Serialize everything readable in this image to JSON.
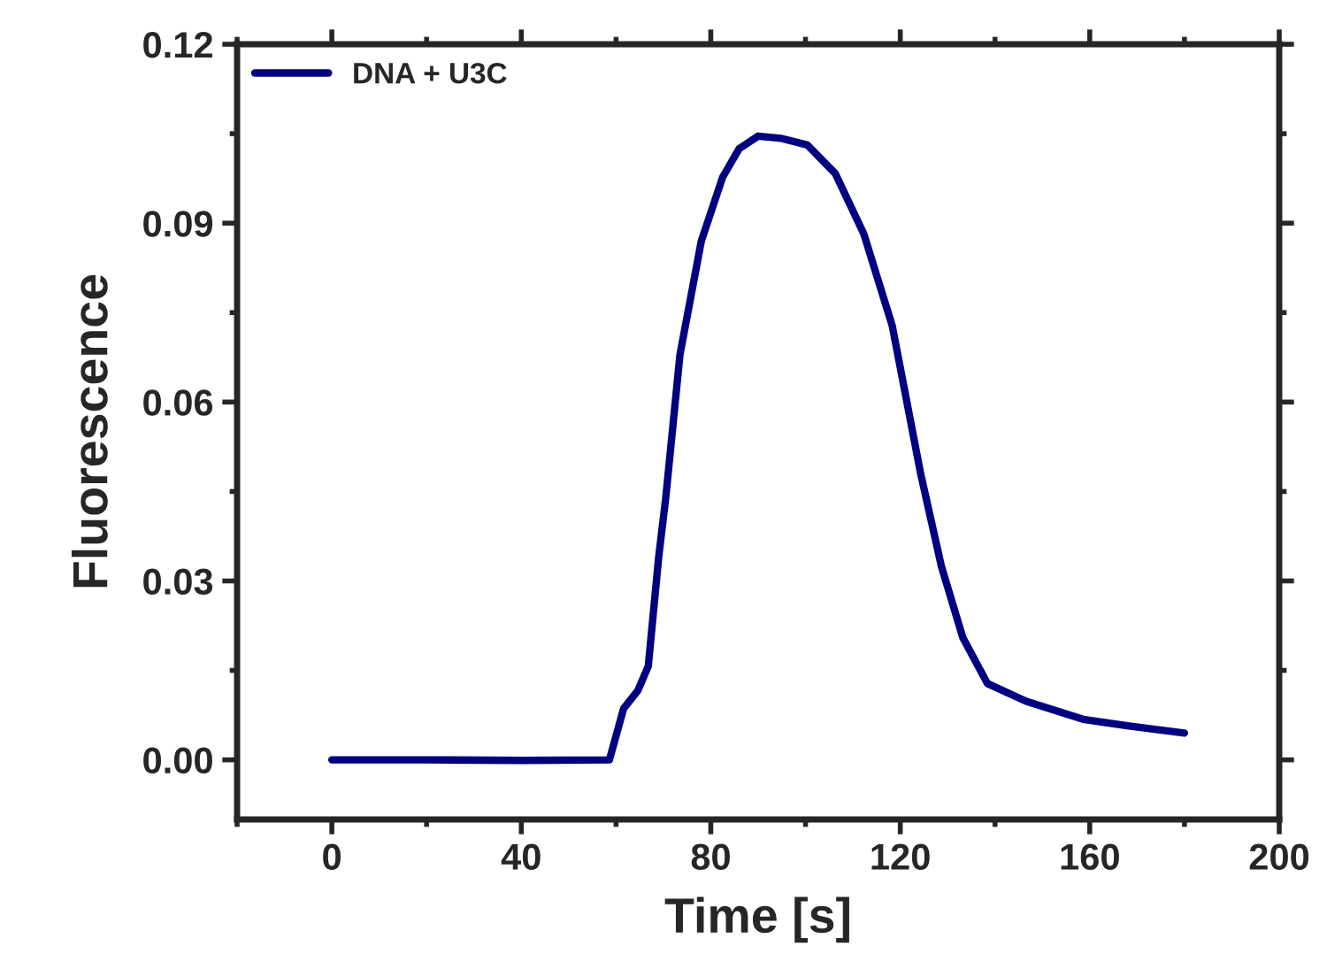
{
  "chart_data": {
    "type": "line",
    "xlabel": "Time [s]",
    "ylabel": "Fluorescence",
    "series": [
      {
        "name": "DNA + U3C",
        "color": "#000080",
        "x": [
          0,
          20,
          40,
          58.6,
          61.6,
          64.6,
          66.8,
          69,
          70.5,
          73.5,
          78,
          82.5,
          86,
          90,
          95,
          100.4,
          106.3,
          112.3,
          118.3,
          124.3,
          128.7,
          133.2,
          138.4,
          146.6,
          158.6,
          169,
          180
        ],
        "values": [
          0,
          0,
          -0.0001,
          0,
          0.0086,
          0.0116,
          0.0157,
          0.034,
          0.044,
          0.068,
          0.087,
          0.0977,
          0.1025,
          0.1046,
          0.1042,
          0.1031,
          0.0983,
          0.0882,
          0.0728,
          0.048,
          0.0324,
          0.0205,
          0.0128,
          0.0098,
          0.0068,
          0.0056,
          0.0045
        ]
      }
    ],
    "xlim": [
      -20,
      200
    ],
    "xticks": [
      0,
      40,
      80,
      120,
      160,
      200
    ],
    "ylim": [
      -0.01,
      0.12
    ],
    "yticks": [
      {
        "value": 0,
        "label": "0.00"
      },
      {
        "value": 0.03,
        "label": "0.03"
      },
      {
        "value": 0.06,
        "label": "0.06"
      },
      {
        "value": 0.09,
        "label": "0.09"
      },
      {
        "value": 0.12,
        "label": "0.12"
      }
    ],
    "grid": false,
    "legend": "top left",
    "marker": "none",
    "line_style": "solid"
  }
}
